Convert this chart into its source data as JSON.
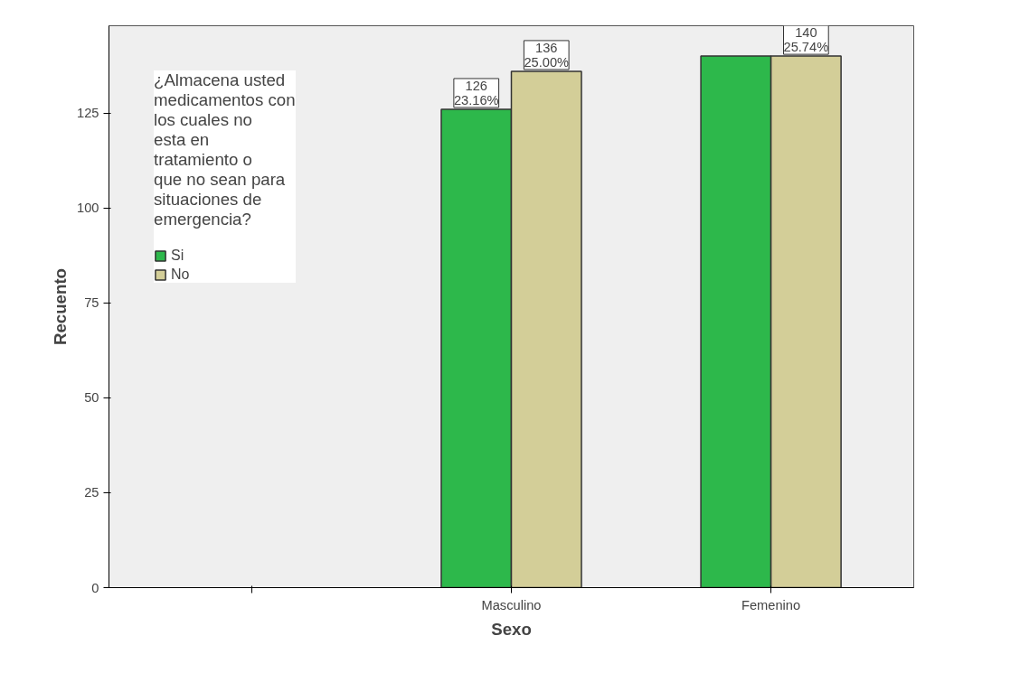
{
  "chart_data": {
    "type": "bar",
    "xlabel": "Sexo",
    "ylabel": "Recuento",
    "legend_title": "¿Almacena usted medicamentos con los cuales no esta en tratamiento o que no sean para situaciones de emergencia?",
    "categories": [
      null,
      "Masculino",
      "Femenino"
    ],
    "series": [
      {
        "name": "Si",
        "color": "#2db84b",
        "values": [
          null,
          126,
          140
        ],
        "value_labels": [
          null,
          "126\n23.16%",
          null
        ]
      },
      {
        "name": "No",
        "color": "#d3ce98",
        "values": [
          null,
          136,
          140
        ],
        "value_labels": [
          null,
          "136\n25.00%",
          "140\n25.74%"
        ]
      }
    ],
    "ylim": [
      0,
      148
    ],
    "yticks": [
      0,
      25,
      50,
      75,
      100,
      125
    ],
    "grid": false,
    "legend": "top left"
  }
}
